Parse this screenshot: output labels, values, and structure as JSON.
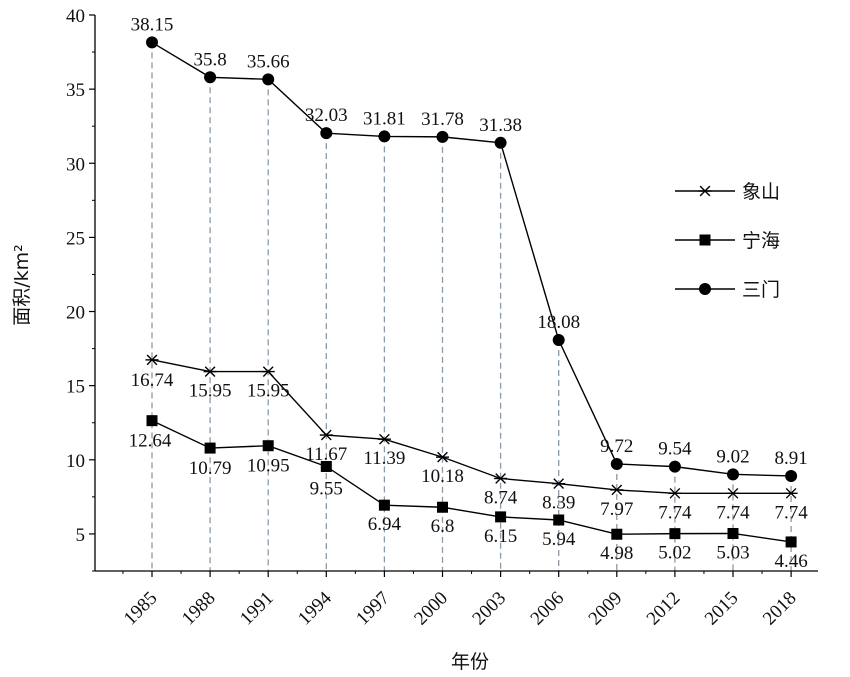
{
  "chart_data": {
    "type": "line",
    "title": "",
    "xlabel": "年份",
    "ylabel": "面积/km²",
    "x": [
      "1985",
      "1988",
      "1991",
      "1994",
      "1997",
      "2000",
      "2003",
      "2006",
      "2009",
      "2012",
      "2015",
      "2018"
    ],
    "ylim": [
      2.5,
      40
    ],
    "yticks": [
      5,
      10,
      15,
      20,
      25,
      30,
      35,
      40
    ],
    "grid": false,
    "legend_position": "right",
    "series": [
      {
        "name": "象山",
        "marker": "asterisk",
        "values": [
          16.74,
          15.95,
          15.95,
          11.67,
          11.39,
          10.18,
          8.74,
          8.39,
          7.97,
          7.74,
          7.74,
          7.74
        ],
        "labels": [
          "16.74",
          "15.95",
          "15.95",
          "11.67",
          "11.39",
          "10.18",
          "8.74",
          "8.39",
          "7.97",
          "7.74",
          "7.74",
          "7.74"
        ]
      },
      {
        "name": "宁海",
        "marker": "square",
        "values": [
          12.64,
          10.79,
          10.95,
          9.55,
          6.94,
          6.8,
          6.15,
          5.94,
          4.98,
          5.02,
          5.03,
          4.46
        ],
        "labels": [
          "12.64",
          "10.79",
          "10.95",
          "9.55",
          "6.94",
          "6.8",
          "6.15",
          "5.94",
          "4.98",
          "5.02",
          "5.03",
          "4.46"
        ]
      },
      {
        "name": "三门",
        "marker": "circle",
        "values": [
          38.15,
          35.8,
          35.66,
          32.03,
          31.81,
          31.78,
          31.38,
          18.08,
          9.72,
          9.54,
          9.02,
          8.91
        ],
        "labels": [
          "38.15",
          "35.8",
          "35.66",
          "32.03",
          "31.81",
          "31.78",
          "31.38",
          "18.08",
          "9.72",
          "9.54",
          "9.02",
          "8.91"
        ]
      }
    ],
    "colors": {
      "line": "#000000",
      "dropline": "#8a9aa8"
    }
  }
}
